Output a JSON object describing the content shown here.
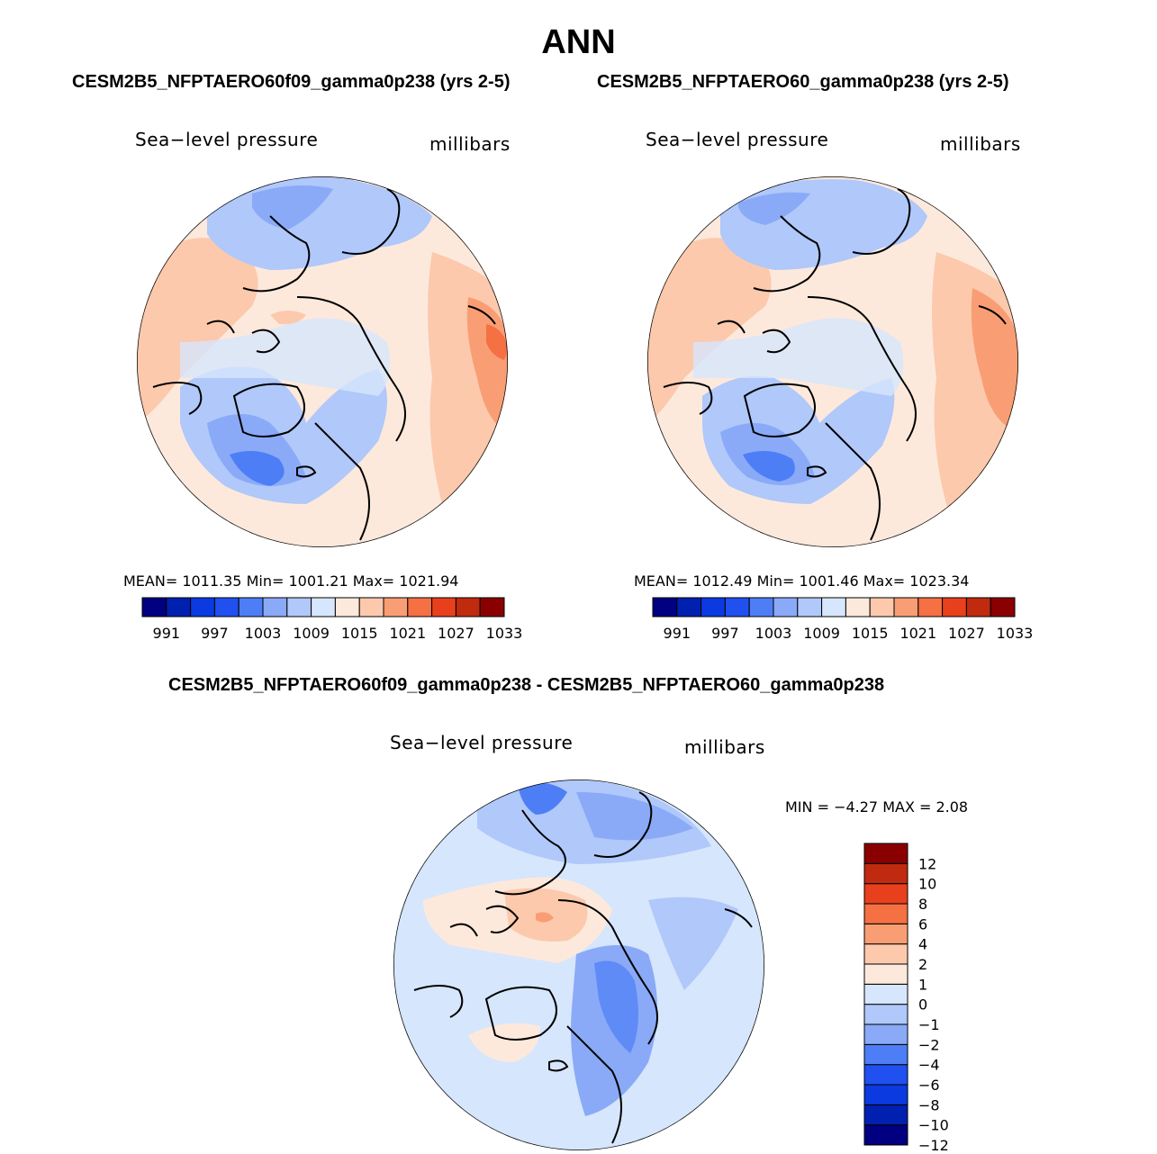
{
  "title": "ANN",
  "panels": [
    {
      "title": "CESM2B5_NFPTAERO60f09_gamma0p238 (yrs 2-5)",
      "variable": "Sea−level pressure",
      "units": "millibars",
      "stats": "MEAN= 1011.35   Min= 1001.21   Max= 1021.94"
    },
    {
      "title": "CESM2B5_NFPTAERO60_gamma0p238 (yrs 2-5)",
      "variable": "Sea−level pressure",
      "units": "millibars",
      "stats": "MEAN= 1012.49   Min= 1001.46   Max= 1023.34"
    }
  ],
  "diff_panel": {
    "title": "CESM2B5_NFPTAERO60f09_gamma0p238 - CESM2B5_NFPTAERO60_gamma0p238",
    "variable": "Sea−level pressure",
    "units": "millibars",
    "stats": "MIN =   −4.27 MAX =    2.08"
  },
  "colorbar_abs": {
    "colors": [
      "#000080",
      "#0020b0",
      "#0a3ae0",
      "#2050f0",
      "#4d7ef5",
      "#8aaaf8",
      "#b0c8fa",
      "#d6e6fc",
      "#fde9dc",
      "#fcc9ad",
      "#f99e74",
      "#f57043",
      "#e8401c",
      "#c02a0e",
      "#8a0000"
    ],
    "labels": [
      "991",
      "997",
      "1003",
      "1009",
      "1015",
      "1021",
      "1027",
      "1033"
    ]
  },
  "colorbar_diff": {
    "colors": [
      "#000080",
      "#0020b0",
      "#0a3ae0",
      "#2050f0",
      "#4d7ef5",
      "#8aaaf8",
      "#b0c8fa",
      "#d6e6fc",
      "#fde9dc",
      "#fcc9ad",
      "#f99e74",
      "#f57043",
      "#e8401c",
      "#c02a0e",
      "#8a0000"
    ],
    "labels": [
      "12",
      "10",
      "8",
      "6",
      "4",
      "2",
      "1",
      "0",
      "−1",
      "−2",
      "−4",
      "−6",
      "−8",
      "−10",
      "−12"
    ]
  }
}
